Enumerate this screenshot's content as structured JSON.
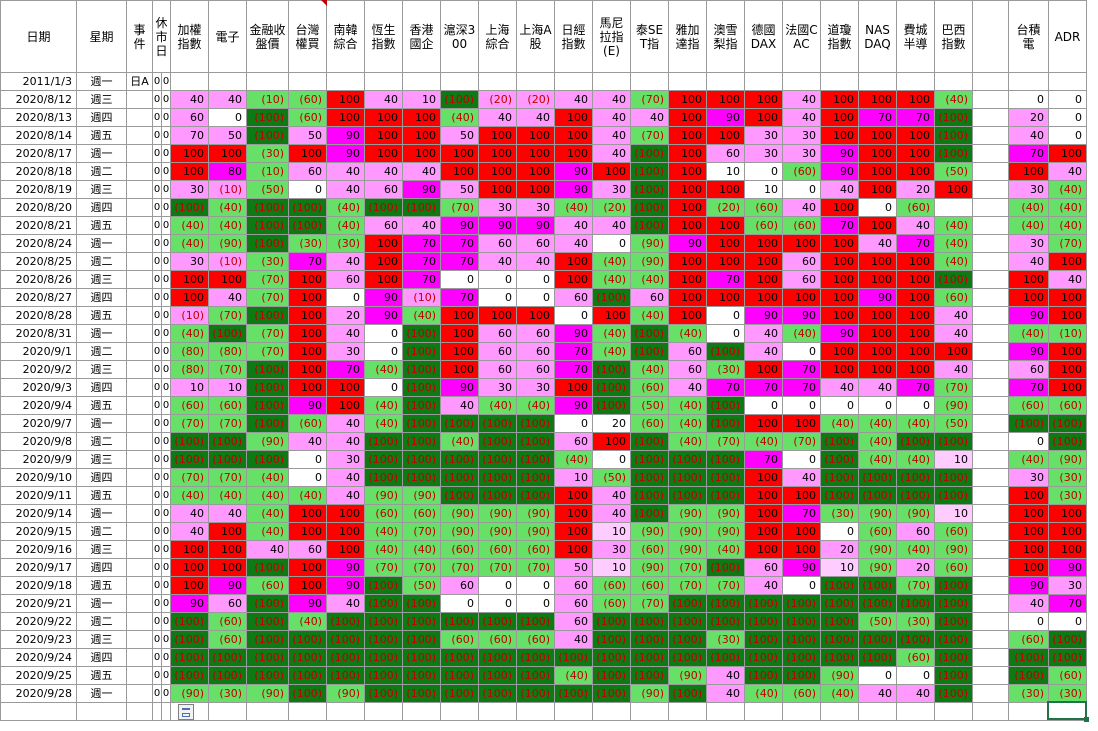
{
  "palette": {
    "R": "#ff0000",
    "M": "#ff00ff",
    "P": "#ff99ff",
    "L": "#66e066",
    "G": "#0d7a13",
    "W": "#ffffff",
    "Y": "#ffccff"
  },
  "headers": [
    "日期",
    "星期",
    "事件",
    "休市日",
    "加權指數",
    "電子",
    "金融收盤價",
    "台灣權買",
    "南韓綜合",
    "恆生指數",
    "香港國企",
    "滬深300",
    "上海綜合",
    "上海A股",
    "日經指數",
    "馬尼拉指(E)",
    "泰SET指",
    "雅加達指",
    "澳雪梨指",
    "德國DAX",
    "法國CAC",
    "道瓊指數",
    "NASDAQ",
    "費城半導",
    "巴西指數",
    "",
    "台積電",
    "ADR"
  ],
  "first_row": {
    "date": "2011/1/3",
    "weekday": "週一",
    "event": "日A",
    "f1": "0",
    "f2": "0"
  },
  "rows": [
    {
      "d": "2020/8/12",
      "w": "週三",
      "c": [
        "P:40",
        "P:40",
        "L:(10)",
        "L:(60)",
        "R:100",
        "P:40",
        "P:10",
        "G:(100)",
        "P:(20)",
        "P:(20)",
        "P:40",
        "P:40",
        "L:(70)",
        "R:100",
        "R:100",
        "R:100",
        "P:40",
        "R:100",
        "R:100",
        "R:100",
        "L:(40)",
        "W:",
        "W:0",
        "W:0"
      ]
    },
    {
      "d": "2020/8/13",
      "w": "週四",
      "c": [
        "P:60",
        "W:0",
        "G:(100)",
        "L:(60)",
        "R:100",
        "R:100",
        "R:100",
        "L:(40)",
        "P:40",
        "P:40",
        "R:100",
        "P:40",
        "P:40",
        "R:100",
        "M:90",
        "R:100",
        "P:40",
        "R:100",
        "M:70",
        "M:70",
        "G:(100)",
        "W:",
        "P:20",
        "W:0"
      ]
    },
    {
      "d": "2020/8/14",
      "w": "週五",
      "c": [
        "P:70",
        "P:50",
        "G:(100)",
        "P:50",
        "M:90",
        "R:100",
        "R:100",
        "P:50",
        "R:100",
        "R:100",
        "R:100",
        "P:40",
        "L:(70)",
        "R:100",
        "R:100",
        "P:30",
        "P:30",
        "R:100",
        "R:100",
        "R:100",
        "G:(100)",
        "W:",
        "P:40",
        "W:0"
      ]
    },
    {
      "d": "2020/8/17",
      "w": "週一",
      "c": [
        "R:100",
        "R:100",
        "L:(30)",
        "R:100",
        "M:90",
        "R:100",
        "R:100",
        "R:100",
        "R:100",
        "R:100",
        "R:100",
        "P:40",
        "G:(100)",
        "R:100",
        "P:60",
        "P:30",
        "P:30",
        "M:90",
        "R:100",
        "R:100",
        "G:(100)",
        "W:",
        "M:70",
        "R:100"
      ]
    },
    {
      "d": "2020/8/18",
      "w": "週二",
      "c": [
        "R:100",
        "M:80",
        "L:(10)",
        "P:60",
        "P:40",
        "P:40",
        "P:40",
        "R:100",
        "R:100",
        "R:100",
        "M:90",
        "R:100",
        "G:(100)",
        "R:100",
        "W:10",
        "W:0",
        "L:(60)",
        "M:90",
        "R:100",
        "R:100",
        "L:(50)",
        "W:",
        "R:100",
        "P:40"
      ]
    },
    {
      "d": "2020/8/19",
      "w": "週三",
      "c": [
        "P:30",
        "P:(10)",
        "L:(50)",
        "W:0",
        "P:40",
        "P:60",
        "M:90",
        "P:50",
        "R:100",
        "R:100",
        "M:90",
        "P:30",
        "G:(100)",
        "R:100",
        "R:100",
        "W:10",
        "W:0",
        "P:40",
        "R:100",
        "P:20",
        "R:100",
        "W:",
        "P:30",
        "L:(40)"
      ]
    },
    {
      "d": "2020/8/20",
      "w": "週四",
      "c": [
        "G:(100)",
        "L:(40)",
        "G:(100)",
        "G:(100)",
        "L:(40)",
        "G:(100)",
        "G:(100)",
        "L:(70)",
        "P:30",
        "P:30",
        "L:(40)",
        "L:(20)",
        "G:(100)",
        "R:100",
        "L:(20)",
        "L:(60)",
        "P:40",
        "R:100",
        "W:0",
        "L:(60)",
        "W:",
        "W:",
        "L:(40)",
        "L:(40)"
      ]
    },
    {
      "d": "2020/8/21",
      "w": "週五",
      "c": [
        "L:(40)",
        "L:(40)",
        "G:(100)",
        "G:(100)",
        "L:(40)",
        "P:60",
        "P:40",
        "M:90",
        "M:90",
        "M:90",
        "P:40",
        "P:40",
        "G:(100)",
        "R:100",
        "R:100",
        "L:(60)",
        "L:(60)",
        "M:70",
        "R:100",
        "P:40",
        "L:(40)",
        "W:",
        "L:(40)",
        "L:(40)"
      ]
    },
    {
      "d": "2020/8/24",
      "w": "週一",
      "c": [
        "L:(40)",
        "L:(90)",
        "G:(100)",
        "L:(30)",
        "L:(30)",
        "R:100",
        "M:70",
        "M:70",
        "P:60",
        "P:60",
        "P:40",
        "W:0",
        "L:(90)",
        "M:90",
        "R:100",
        "R:100",
        "R:100",
        "R:100",
        "P:40",
        "M:70",
        "L:(40)",
        "W:",
        "P:30",
        "L:(70)"
      ]
    },
    {
      "d": "2020/8/25",
      "w": "週二",
      "c": [
        "P:30",
        "P:(10)",
        "L:(30)",
        "M:70",
        "P:40",
        "R:100",
        "M:70",
        "M:70",
        "P:40",
        "P:40",
        "R:100",
        "L:(40)",
        "L:(90)",
        "R:100",
        "R:100",
        "R:100",
        "P:60",
        "R:100",
        "R:100",
        "R:100",
        "L:(40)",
        "W:",
        "P:40",
        "R:100"
      ]
    },
    {
      "d": "2020/8/26",
      "w": "週三",
      "c": [
        "R:100",
        "R:100",
        "L:(70)",
        "R:100",
        "P:60",
        "R:100",
        "M:70",
        "W:0",
        "W:0",
        "W:0",
        "R:100",
        "L:(40)",
        "L:(40)",
        "R:100",
        "M:70",
        "R:100",
        "P:60",
        "R:100",
        "R:100",
        "R:100",
        "G:(100)",
        "W:",
        "R:100",
        "P:40"
      ]
    },
    {
      "d": "2020/8/27",
      "w": "週四",
      "c": [
        "R:100",
        "P:40",
        "L:(70)",
        "R:100",
        "W:0",
        "M:90",
        "P:(10)",
        "M:70",
        "W:0",
        "W:0",
        "P:60",
        "G:(100)",
        "P:60",
        "R:100",
        "R:100",
        "R:100",
        "R:100",
        "R:100",
        "M:90",
        "R:100",
        "L:(60)",
        "W:",
        "R:100",
        "R:100"
      ]
    },
    {
      "d": "2020/8/28",
      "w": "週五",
      "c": [
        "P:(10)",
        "L:(70)",
        "G:(100)",
        "R:100",
        "P:20",
        "M:90",
        "L:(40)",
        "R:100",
        "R:100",
        "R:100",
        "W:0",
        "R:100",
        "L:(40)",
        "R:100",
        "W:0",
        "M:90",
        "M:90",
        "R:100",
        "R:100",
        "R:100",
        "P:40",
        "W:",
        "M:90",
        "R:100"
      ]
    },
    {
      "d": "2020/8/31",
      "w": "週一",
      "c": [
        "L:(40)",
        "G:(100)",
        "L:(70)",
        "R:100",
        "P:40",
        "W:0",
        "G:(100)",
        "R:100",
        "P:60",
        "P:60",
        "M:90",
        "L:(40)",
        "G:(100)",
        "L:(40)",
        "W:0",
        "P:40",
        "L:(40)",
        "M:90",
        "R:100",
        "R:100",
        "P:40",
        "W:",
        "L:(40)",
        "L:(10)"
      ]
    },
    {
      "d": "2020/9/1",
      "w": "週二",
      "c": [
        "L:(80)",
        "L:(80)",
        "L:(70)",
        "R:100",
        "P:30",
        "W:0",
        "G:(100)",
        "R:100",
        "P:60",
        "P:60",
        "M:70",
        "L:(40)",
        "G:(100)",
        "P:60",
        "G:(100)",
        "P:40",
        "W:0",
        "R:100",
        "R:100",
        "R:100",
        "R:100",
        "W:",
        "M:90",
        "R:100"
      ]
    },
    {
      "d": "2020/9/2",
      "w": "週三",
      "c": [
        "L:(80)",
        "L:(70)",
        "G:(100)",
        "R:100",
        "M:70",
        "L:(40)",
        "G:(100)",
        "R:100",
        "P:60",
        "P:60",
        "M:70",
        "G:(100)",
        "L:(40)",
        "P:60",
        "L:(30)",
        "R:100",
        "M:70",
        "R:100",
        "R:100",
        "R:100",
        "P:40",
        "W:",
        "P:60",
        "R:100"
      ]
    },
    {
      "d": "2020/9/3",
      "w": "週四",
      "c": [
        "P:10",
        "P:10",
        "G:(100)",
        "R:100",
        "R:100",
        "W:0",
        "G:(100)",
        "M:90",
        "P:30",
        "P:30",
        "R:100",
        "G:(100)",
        "L:(60)",
        "P:40",
        "M:70",
        "M:70",
        "M:70",
        "P:40",
        "P:40",
        "M:70",
        "L:(70)",
        "W:",
        "M:70",
        "R:100"
      ]
    },
    {
      "d": "2020/9/4",
      "w": "週五",
      "c": [
        "L:(60)",
        "L:(60)",
        "G:(100)",
        "M:90",
        "R:100",
        "L:(40)",
        "G:(100)",
        "P:40",
        "L:(40)",
        "L:(40)",
        "M:90",
        "G:(100)",
        "L:(50)",
        "L:(40)",
        "G:(100)",
        "W:0",
        "W:0",
        "W:0",
        "W:0",
        "W:0",
        "L:(90)",
        "W:",
        "L:(60)",
        "L:(60)"
      ]
    },
    {
      "d": "2020/9/7",
      "w": "週一",
      "c": [
        "L:(70)",
        "L:(70)",
        "G:(100)",
        "L:(60)",
        "P:40",
        "L:(40)",
        "G:(100)",
        "G:(100)",
        "G:(100)",
        "G:(100)",
        "W:0",
        "W:20",
        "L:(60)",
        "L:(40)",
        "G:(100)",
        "R:100",
        "R:100",
        "L:(40)",
        "L:(40)",
        "L:(40)",
        "L:(50)",
        "W:",
        "G:(100)",
        "G:(100)"
      ]
    },
    {
      "d": "2020/9/8",
      "w": "週二",
      "c": [
        "G:(100)",
        "G:(100)",
        "L:(90)",
        "P:40",
        "P:40",
        "G:(100)",
        "G:(100)",
        "L:(40)",
        "G:(100)",
        "G:(100)",
        "P:60",
        "R:100",
        "G:(100)",
        "L:(40)",
        "L:(70)",
        "L:(40)",
        "L:(70)",
        "G:(100)",
        "L:(40)",
        "G:(100)",
        "G:(100)",
        "W:",
        "W:0",
        "G:(100)"
      ]
    },
    {
      "d": "2020/9/9",
      "w": "週三",
      "c": [
        "G:(100)",
        "G:(100)",
        "G:(100)",
        "W:0",
        "P:30",
        "G:(100)",
        "G:(100)",
        "G:(100)",
        "G:(100)",
        "G:(100)",
        "L:(40)",
        "W:0",
        "G:(100)",
        "G:(100)",
        "G:(100)",
        "M:70",
        "W:0",
        "G:(100)",
        "L:(40)",
        "L:(40)",
        "Y:10",
        "W:",
        "L:(40)",
        "L:(90)"
      ]
    },
    {
      "d": "2020/9/10",
      "w": "週四",
      "c": [
        "L:(70)",
        "L:(70)",
        "L:(40)",
        "W:0",
        "P:40",
        "G:(100)",
        "G:(100)",
        "G:(100)",
        "G:(100)",
        "G:(100)",
        "P:10",
        "L:(50)",
        "G:(100)",
        "G:(100)",
        "G:(100)",
        "R:100",
        "P:40",
        "G:(100)",
        "G:(100)",
        "G:(100)",
        "G:(100)",
        "W:",
        "P:30",
        "L:(30)"
      ]
    },
    {
      "d": "2020/9/11",
      "w": "週五",
      "c": [
        "L:(40)",
        "L:(40)",
        "L:(40)",
        "L:(40)",
        "P:40",
        "L:(90)",
        "L:(90)",
        "G:(100)",
        "G:(100)",
        "G:(100)",
        "R:100",
        "P:40",
        "G:(100)",
        "G:(100)",
        "G:(100)",
        "R:100",
        "R:100",
        "G:(100)",
        "G:(100)",
        "G:(100)",
        "G:(100)",
        "W:",
        "R:100",
        "L:(30)"
      ]
    },
    {
      "d": "2020/9/14",
      "w": "週一",
      "c": [
        "P:40",
        "P:40",
        "L:(40)",
        "R:100",
        "R:100",
        "L:(60)",
        "L:(60)",
        "L:(90)",
        "L:(90)",
        "L:(90)",
        "R:100",
        "P:40",
        "G:(100)",
        "L:(90)",
        "L:(90)",
        "R:100",
        "M:70",
        "L:(30)",
        "L:(90)",
        "L:(90)",
        "Y:10",
        "W:",
        "R:100",
        "R:100"
      ]
    },
    {
      "d": "2020/9/15",
      "w": "週二",
      "c": [
        "P:40",
        "R:100",
        "L:(40)",
        "R:100",
        "R:100",
        "L:(40)",
        "L:(70)",
        "L:(90)",
        "L:(90)",
        "L:(90)",
        "R:100",
        "Y:10",
        "L:(90)",
        "L:(90)",
        "L:(90)",
        "R:100",
        "R:100",
        "W:0",
        "L:(60)",
        "P:60",
        "L:(60)",
        "W:",
        "R:100",
        "R:100"
      ]
    },
    {
      "d": "2020/9/16",
      "w": "週三",
      "c": [
        "R:100",
        "R:100",
        "P:40",
        "P:60",
        "R:100",
        "L:(40)",
        "L:(40)",
        "L:(60)",
        "L:(60)",
        "L:(60)",
        "R:100",
        "P:30",
        "L:(60)",
        "L:(90)",
        "L:(40)",
        "R:100",
        "R:100",
        "P:20",
        "L:(90)",
        "L:(40)",
        "L:(90)",
        "W:",
        "R:100",
        "R:100"
      ]
    },
    {
      "d": "2020/9/17",
      "w": "週四",
      "c": [
        "R:100",
        "R:100",
        "G:(100)",
        "R:100",
        "M:90",
        "L:(70)",
        "L:(70)",
        "L:(70)",
        "L:(70)",
        "L:(70)",
        "P:50",
        "Y:10",
        "L:(90)",
        "L:(70)",
        "G:(100)",
        "P:60",
        "M:90",
        "Y:10",
        "L:(90)",
        "P:20",
        "L:(60)",
        "W:",
        "R:100",
        "M:90"
      ]
    },
    {
      "d": "2020/9/18",
      "w": "週五",
      "c": [
        "R:100",
        "M:90",
        "L:(60)",
        "R:100",
        "M:90",
        "G:(100)",
        "L:(50)",
        "P:60",
        "W:0",
        "W:0",
        "P:60",
        "L:(60)",
        "L:(60)",
        "L:(70)",
        "L:(70)",
        "P:40",
        "W:0",
        "G:(100)",
        "G:(100)",
        "L:(70)",
        "G:(100)",
        "W:",
        "M:90",
        "P:30"
      ]
    },
    {
      "d": "2020/9/21",
      "w": "週一",
      "c": [
        "M:90",
        "P:60",
        "G:(100)",
        "M:90",
        "P:40",
        "G:(100)",
        "G:(100)",
        "W:0",
        "W:0",
        "W:0",
        "P:60",
        "L:(60)",
        "L:(70)",
        "G:(100)",
        "G:(100)",
        "G:(100)",
        "G:(100)",
        "G:(100)",
        "G:(100)",
        "G:(100)",
        "G:(100)",
        "W:",
        "P:40",
        "M:70"
      ]
    },
    {
      "d": "2020/9/22",
      "w": "週二",
      "c": [
        "G:(100)",
        "L:(60)",
        "G:(100)",
        "L:(40)",
        "G:(100)",
        "G:(100)",
        "G:(100)",
        "G:(100)",
        "G:(100)",
        "G:(100)",
        "P:60",
        "G:(100)",
        "G:(100)",
        "G:(100)",
        "G:(100)",
        "G:(100)",
        "G:(100)",
        "G:(100)",
        "L:(50)",
        "L:(30)",
        "G:(100)",
        "W:",
        "W:0",
        "W:0"
      ]
    },
    {
      "d": "2020/9/23",
      "w": "週三",
      "c": [
        "G:(100)",
        "L:(60)",
        "G:(100)",
        "G:(100)",
        "G:(100)",
        "G:(100)",
        "G:(100)",
        "L:(60)",
        "L:(60)",
        "L:(60)",
        "P:40",
        "G:(100)",
        "G:(100)",
        "G:(100)",
        "L:(30)",
        "G:(100)",
        "G:(100)",
        "G:(100)",
        "G:(100)",
        "G:(100)",
        "G:(100)",
        "W:",
        "L:(60)",
        "G:(100)"
      ]
    },
    {
      "d": "2020/9/24",
      "w": "週四",
      "c": [
        "G:(100)",
        "G:(100)",
        "G:(100)",
        "G:(100)",
        "G:(100)",
        "G:(100)",
        "G:(100)",
        "G:(100)",
        "G:(100)",
        "G:(100)",
        "G:(100)",
        "G:(100)",
        "G:(100)",
        "G:(100)",
        "G:(100)",
        "G:(100)",
        "G:(100)",
        "G:(100)",
        "G:(100)",
        "L:(60)",
        "G:(100)",
        "W:",
        "G:(100)",
        "G:(100)"
      ]
    },
    {
      "d": "2020/9/25",
      "w": "週五",
      "c": [
        "G:(100)",
        "G:(100)",
        "G:(100)",
        "G:(100)",
        "G:(100)",
        "G:(100)",
        "G:(100)",
        "G:(100)",
        "G:(100)",
        "G:(100)",
        "L:(40)",
        "G:(100)",
        "G:(100)",
        "L:(90)",
        "P:40",
        "G:(100)",
        "G:(100)",
        "L:(90)",
        "W:0",
        "W:0",
        "G:(100)",
        "W:",
        "G:(100)",
        "L:(60)"
      ]
    },
    {
      "d": "2020/9/28",
      "w": "週一",
      "c": [
        "L:(90)",
        "L:(30)",
        "L:(90)",
        "G:(100)",
        "L:(90)",
        "G:(100)",
        "G:(100)",
        "G:(100)",
        "G:(100)",
        "G:(100)",
        "G:(100)",
        "G:(100)",
        "L:(90)",
        "G:(100)",
        "P:40",
        "L:(40)",
        "L:(60)",
        "L:(40)",
        "P:40",
        "P:40",
        "G:(100)",
        "W:",
        "L:(30)",
        "L:(30)"
      ]
    }
  ]
}
